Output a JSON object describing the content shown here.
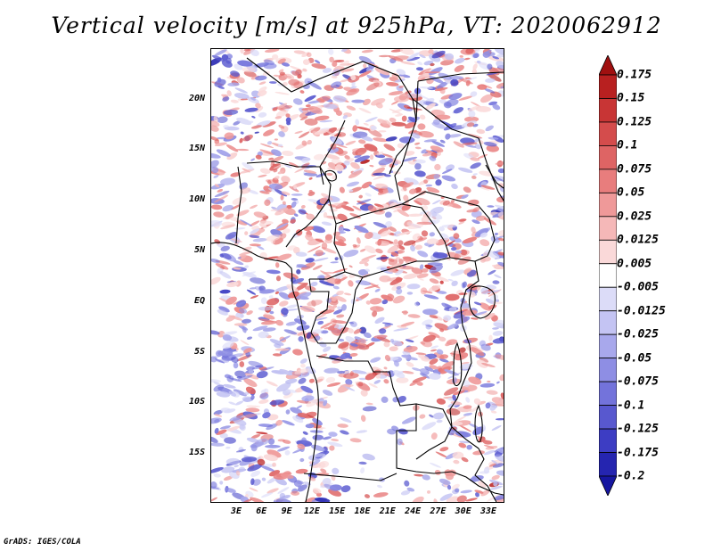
{
  "title": "Vertical velocity [m/s] at 925hPa, VT: 2020062912",
  "footer": "GrADS: IGES/COLA",
  "map": {
    "lat_labels": [
      "20N",
      "15N",
      "10N",
      "5N",
      "EQ",
      "5S",
      "10S",
      "15S"
    ],
    "lon_labels": [
      "3E",
      "6E",
      "9E",
      "12E",
      "15E",
      "18E",
      "21E",
      "24E",
      "27E",
      "30E",
      "33E"
    ],
    "land_color": "#ffffff",
    "border_color": "#000000"
  },
  "colorbar": {
    "labels": [
      "0.175",
      "0.15",
      "0.125",
      "0.1",
      "0.075",
      "0.05",
      "0.025",
      "0.0125",
      "0.005",
      "-0.005",
      "-0.0125",
      "-0.025",
      "-0.05",
      "-0.075",
      "-0.1",
      "-0.125",
      "-0.175",
      "-0.2"
    ],
    "colors": [
      "#a01010",
      "#b82020",
      "#c83535",
      "#d44c4c",
      "#de6464",
      "#e87d7d",
      "#ef9999",
      "#f5b8b8",
      "#fad9d9",
      "#ffffff",
      "#dcdcf8",
      "#c4c4f3",
      "#a8a8ec",
      "#8e8ee4",
      "#7373db",
      "#5858cf",
      "#3d3dc3",
      "#2525b0",
      "#1616a0"
    ]
  }
}
